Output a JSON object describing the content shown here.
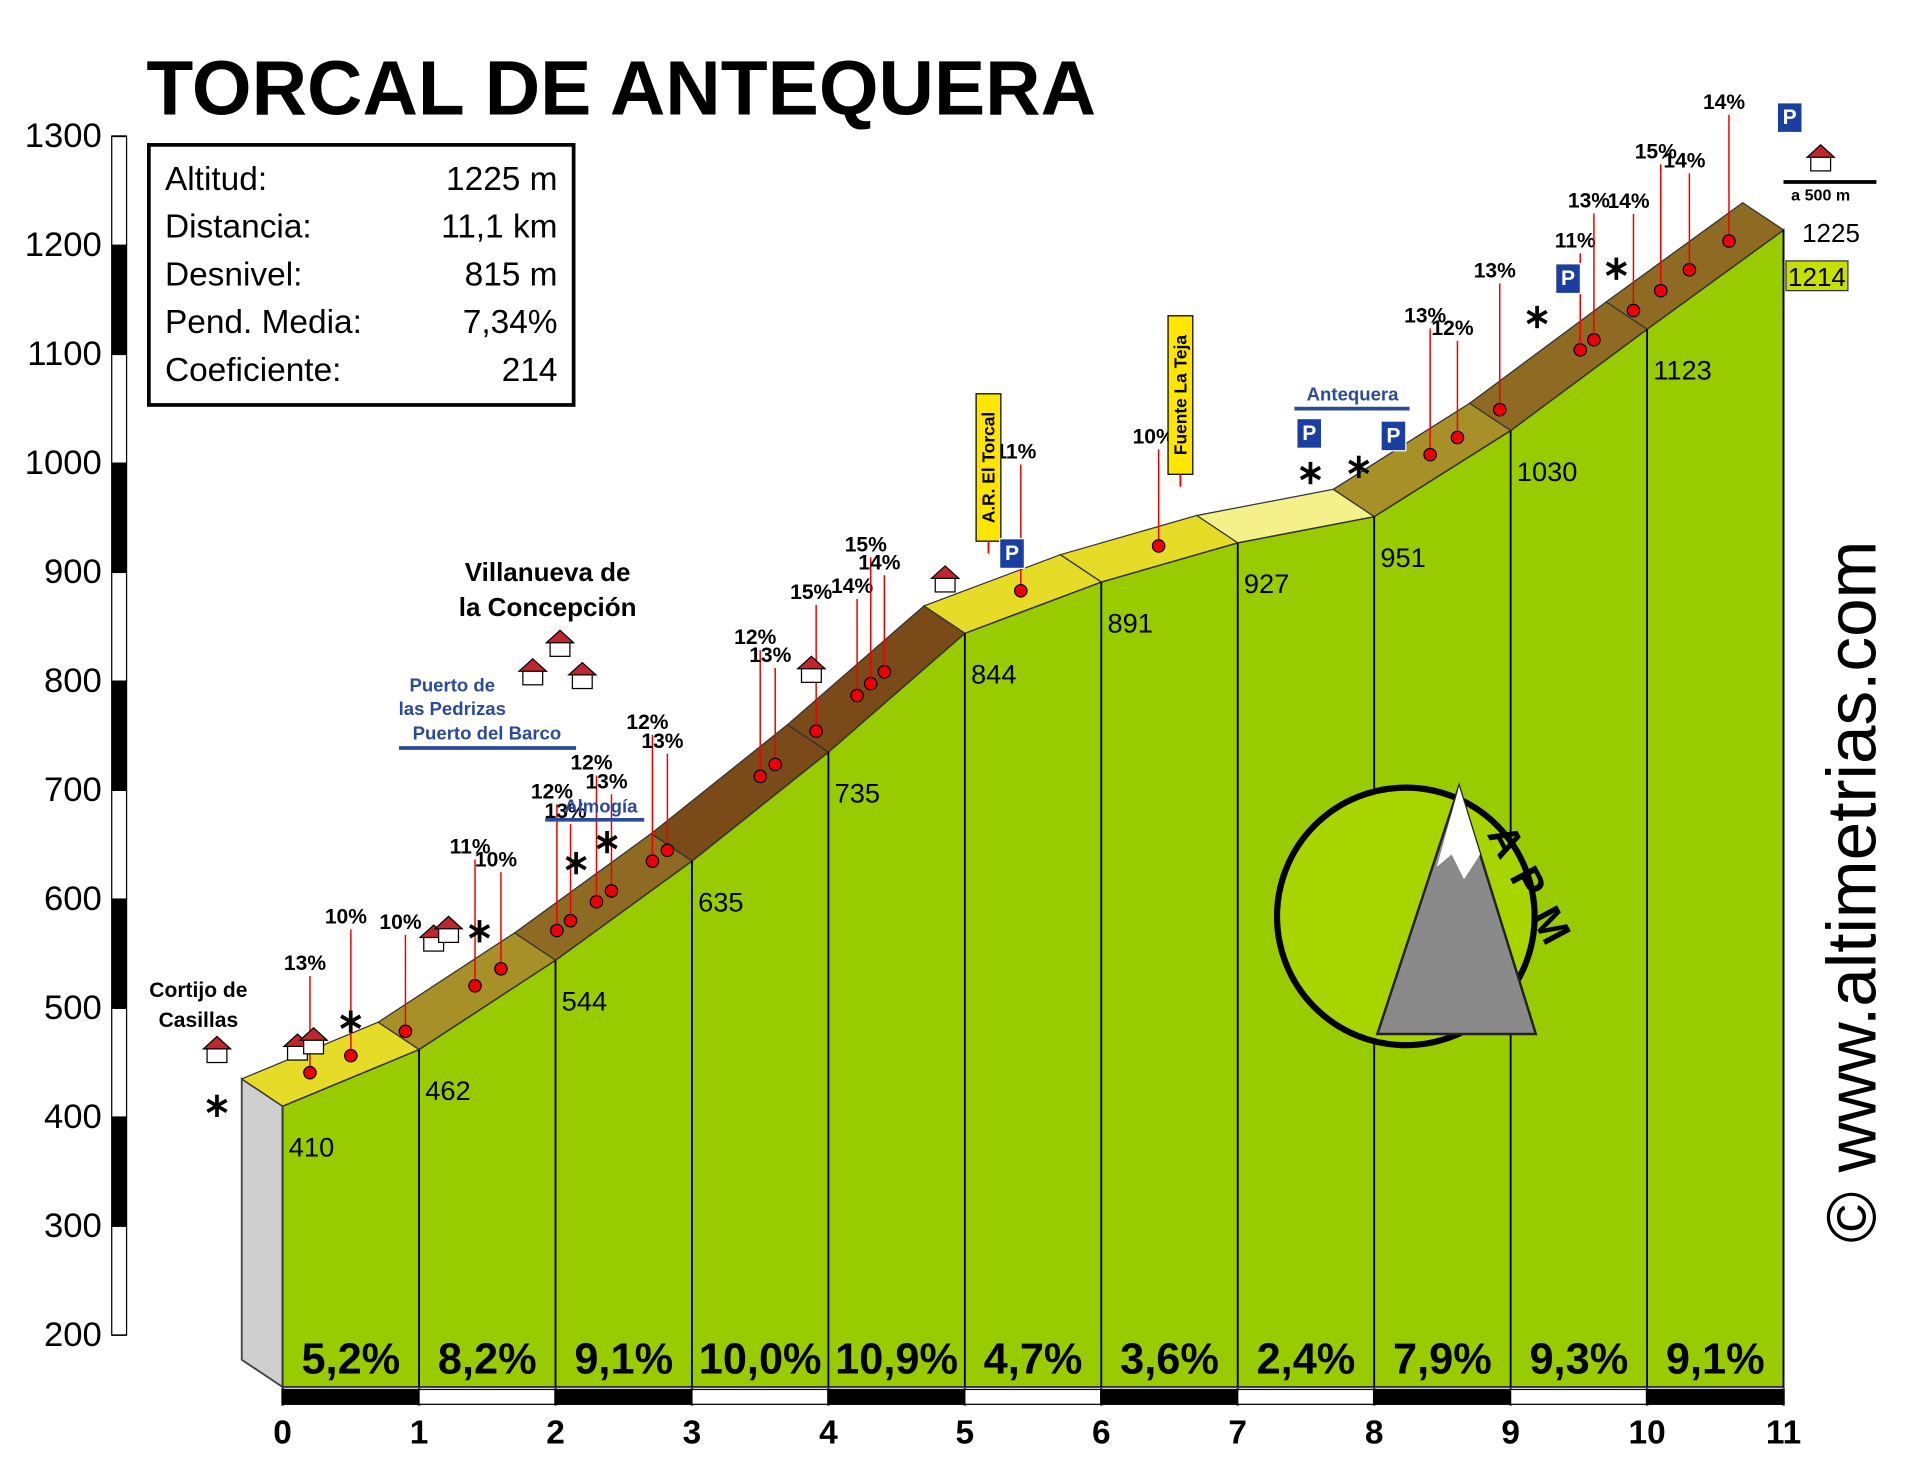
{
  "chart_data": {
    "type": "elevation-profile",
    "title": "TORCAL DE ANTEQUERA",
    "stats": [
      [
        "Altitud:",
        "1225 m"
      ],
      [
        "Distancia:",
        "11,1 km"
      ],
      [
        "Desnivel:",
        "815 m"
      ],
      [
        "Pend. Media:",
        "7,34%"
      ],
      [
        "Coeficiente:",
        "214"
      ]
    ],
    "x": [
      0,
      1,
      2,
      3,
      4,
      5,
      6,
      7,
      8,
      9,
      10,
      11
    ],
    "values": [
      410,
      462,
      544,
      635,
      735,
      844,
      891,
      927,
      951,
      1030,
      1123,
      1214
    ],
    "xlim": [
      0,
      11
    ],
    "xticks": [
      0,
      1,
      2,
      3,
      4,
      5,
      6,
      7,
      8,
      9,
      10,
      11
    ],
    "ylim": [
      200,
      1300
    ],
    "yticks": [
      200,
      300,
      400,
      500,
      600,
      700,
      800,
      900,
      1000,
      1100,
      1200,
      1300
    ],
    "color": "#99cc00",
    "grades": {
      "values": [
        5.2,
        8.2,
        9.1,
        10.0,
        10.9,
        4.7,
        3.6,
        2.4,
        7.9,
        9.3,
        9.1
      ],
      "value_labels": [
        "5,2%",
        "8,2%",
        "9,1%",
        "10,0%",
        "10,9%",
        "4,7%",
        "3,6%",
        "2,4%",
        "7,9%",
        "9,3%",
        "9,1%"
      ]
    },
    "summit_altitude": 1225,
    "grade_points": {
      "x": [
        0.35,
        0.65,
        1.05,
        1.56,
        1.75,
        2.16,
        2.26,
        2.45,
        2.56,
        2.86,
        2.97,
        3.65,
        3.76,
        4.06,
        4.36,
        4.46,
        4.56,
        5.56,
        6.57,
        8.56,
        8.76,
        9.07,
        9.66,
        9.76,
        10.05,
        10.25,
        10.46,
        10.75
      ],
      "values": [
        13,
        10,
        10,
        11,
        10,
        12,
        13,
        12,
        13,
        12,
        13,
        12,
        13,
        15,
        14,
        15,
        14,
        11,
        10,
        13,
        12,
        13,
        11,
        13,
        14,
        15,
        14,
        14
      ],
      "value_labels": [
        "13%",
        "10%",
        "10%",
        "11%",
        "10%",
        "12%",
        "13%",
        "12%",
        "13%",
        "12%",
        "13%",
        "12%",
        "13%",
        "15%",
        "14%",
        "15%",
        "14%",
        "11%",
        "10%",
        "13%",
        "12%",
        "13%",
        "11%",
        "13%",
        "14%",
        "15%",
        "14%",
        "14%"
      ]
    },
    "places": [
      [
        "Cortijo de",
        "Casillas"
      ],
      [
        "Villanueva de",
        "la Concepción"
      ],
      [
        "Puerto de",
        "las Pedrizas"
      ],
      [
        "Puerto del Barco"
      ],
      [
        "Almogía"
      ],
      [
        "A.R. El Torcal"
      ],
      [
        "Fuente La Teja"
      ],
      [
        "Antequera"
      ]
    ],
    "parking": "P",
    "distance_note": "a 500 m",
    "logo": "APM",
    "credit": "© www.altimetrias.com"
  }
}
